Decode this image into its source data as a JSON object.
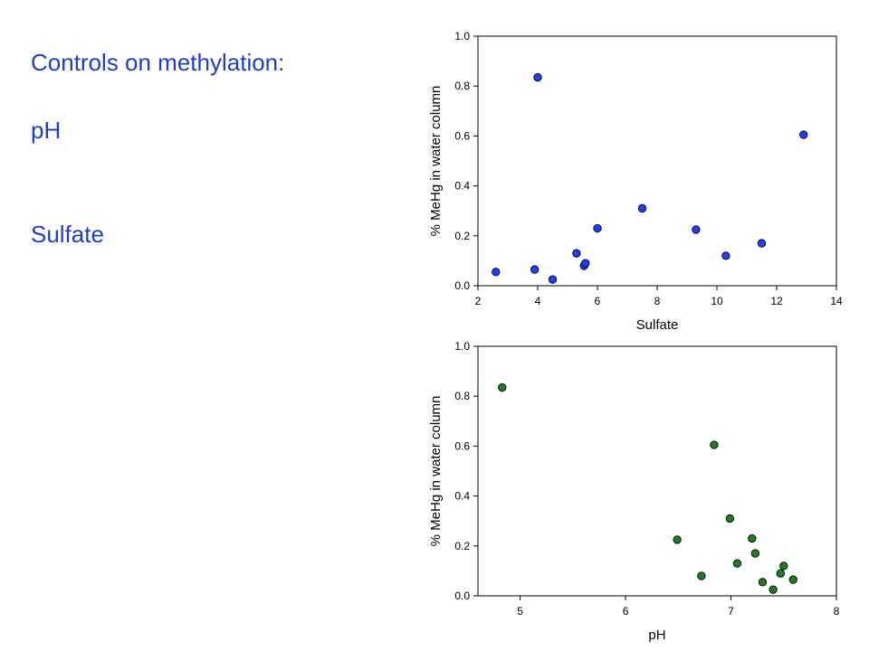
{
  "slide": {
    "title": "Controls on methylation:",
    "bullets": [
      "pH",
      "Sulfate"
    ]
  },
  "colors": {
    "text_accent": "#1f3fbf",
    "series_top": "#1f3fff",
    "series_bottom": "#1e7e1e"
  },
  "chart_data": [
    {
      "type": "scatter",
      "title": "",
      "xlabel": "Sulfate",
      "ylabel": "% MeHg in water column",
      "xlim": [
        2,
        14
      ],
      "ylim": [
        0,
        1.0
      ],
      "xticks": [
        "2",
        "4",
        "6",
        "8",
        "10",
        "12",
        "14"
      ],
      "yticks": [
        "0.0",
        "0.2",
        "0.4",
        "0.6",
        "0.8",
        "1.0"
      ],
      "grid": false,
      "points": [
        {
          "x": 2.6,
          "y": 0.055
        },
        {
          "x": 3.9,
          "y": 0.065
        },
        {
          "x": 4.0,
          "y": 0.835
        },
        {
          "x": 4.5,
          "y": 0.025
        },
        {
          "x": 5.3,
          "y": 0.13
        },
        {
          "x": 5.55,
          "y": 0.08
        },
        {
          "x": 5.6,
          "y": 0.09
        },
        {
          "x": 6.0,
          "y": 0.23
        },
        {
          "x": 7.5,
          "y": 0.31
        },
        {
          "x": 9.3,
          "y": 0.225
        },
        {
          "x": 10.3,
          "y": 0.12
        },
        {
          "x": 11.5,
          "y": 0.17
        },
        {
          "x": 12.9,
          "y": 0.605
        }
      ]
    },
    {
      "type": "scatter",
      "title": "",
      "xlabel": "pH",
      "ylabel": "% MeHg in water column",
      "xlim": [
        4.6,
        8
      ],
      "ylim": [
        0,
        1.0
      ],
      "xticks": [
        "5",
        "6",
        "7",
        "8"
      ],
      "yticks": [
        "0.0",
        "0.2",
        "0.4",
        "0.6",
        "0.8",
        "1.0"
      ],
      "grid": false,
      "points": [
        {
          "x": 4.83,
          "y": 0.835
        },
        {
          "x": 6.49,
          "y": 0.225
        },
        {
          "x": 6.72,
          "y": 0.08
        },
        {
          "x": 6.84,
          "y": 0.605
        },
        {
          "x": 6.99,
          "y": 0.31
        },
        {
          "x": 7.06,
          "y": 0.13
        },
        {
          "x": 7.2,
          "y": 0.23
        },
        {
          "x": 7.23,
          "y": 0.17
        },
        {
          "x": 7.3,
          "y": 0.055
        },
        {
          "x": 7.4,
          "y": 0.025
        },
        {
          "x": 7.47,
          "y": 0.09
        },
        {
          "x": 7.5,
          "y": 0.12
        },
        {
          "x": 7.59,
          "y": 0.065
        }
      ]
    }
  ]
}
